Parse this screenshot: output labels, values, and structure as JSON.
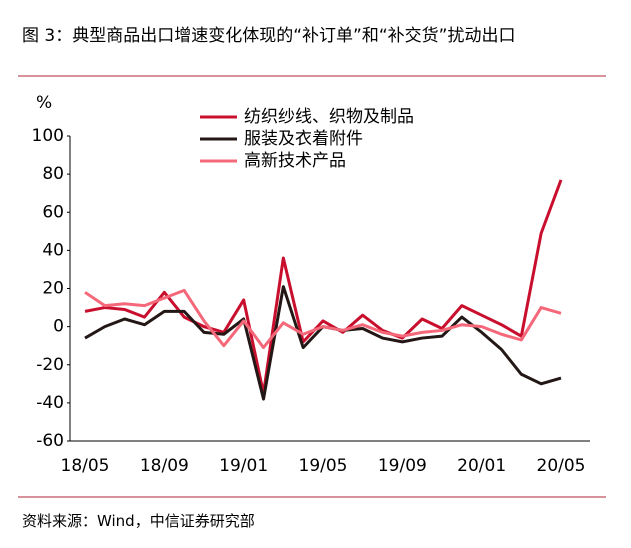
{
  "chart_data": {
    "type": "line",
    "title": "图 3：典型商品出口增速变化体现的“补订单”和“补交货”扰动出口",
    "y_label": "%",
    "source": "资料来源：Wind，中信证券研究部",
    "categories": [
      "18/05",
      null,
      null,
      null,
      "18/09",
      null,
      null,
      null,
      "19/01",
      null,
      null,
      null,
      "19/05",
      null,
      null,
      null,
      "19/09",
      null,
      null,
      null,
      "20/01",
      null,
      null,
      null,
      "20/05"
    ],
    "series": [
      {
        "name": "纺织纱线、织物及制品",
        "color": "#c8102e",
        "values": [
          8,
          10,
          9,
          5,
          18,
          5,
          0,
          -3,
          14,
          -35,
          36,
          -8,
          3,
          -3,
          6,
          -2,
          -6,
          4,
          -1,
          11,
          6,
          1,
          -5,
          49,
          77
        ]
      },
      {
        "name": "服装及衣着附件",
        "color": "#231815",
        "values": [
          -6,
          0,
          4,
          1,
          8,
          8,
          -3,
          -4,
          4,
          -38,
          21,
          -11,
          0,
          -2,
          -1,
          -6,
          -8,
          -6,
          -5,
          5,
          -3,
          -12,
          -25,
          -30,
          -27
        ]
      },
      {
        "name": "高新技术产品",
        "color": "#f4687a",
        "values": [
          18,
          11,
          12,
          11,
          15,
          19,
          3,
          -10,
          3,
          -11,
          2,
          -4,
          0,
          -2,
          1,
          -3,
          -5,
          -3,
          -2,
          1,
          0,
          -4,
          -7,
          10,
          7
        ]
      }
    ],
    "ylim": [
      -60,
      100
    ],
    "yticks": [
      -60,
      -40,
      -20,
      0,
      20,
      40,
      60,
      80,
      100
    ],
    "grid": false,
    "legend": "top"
  }
}
